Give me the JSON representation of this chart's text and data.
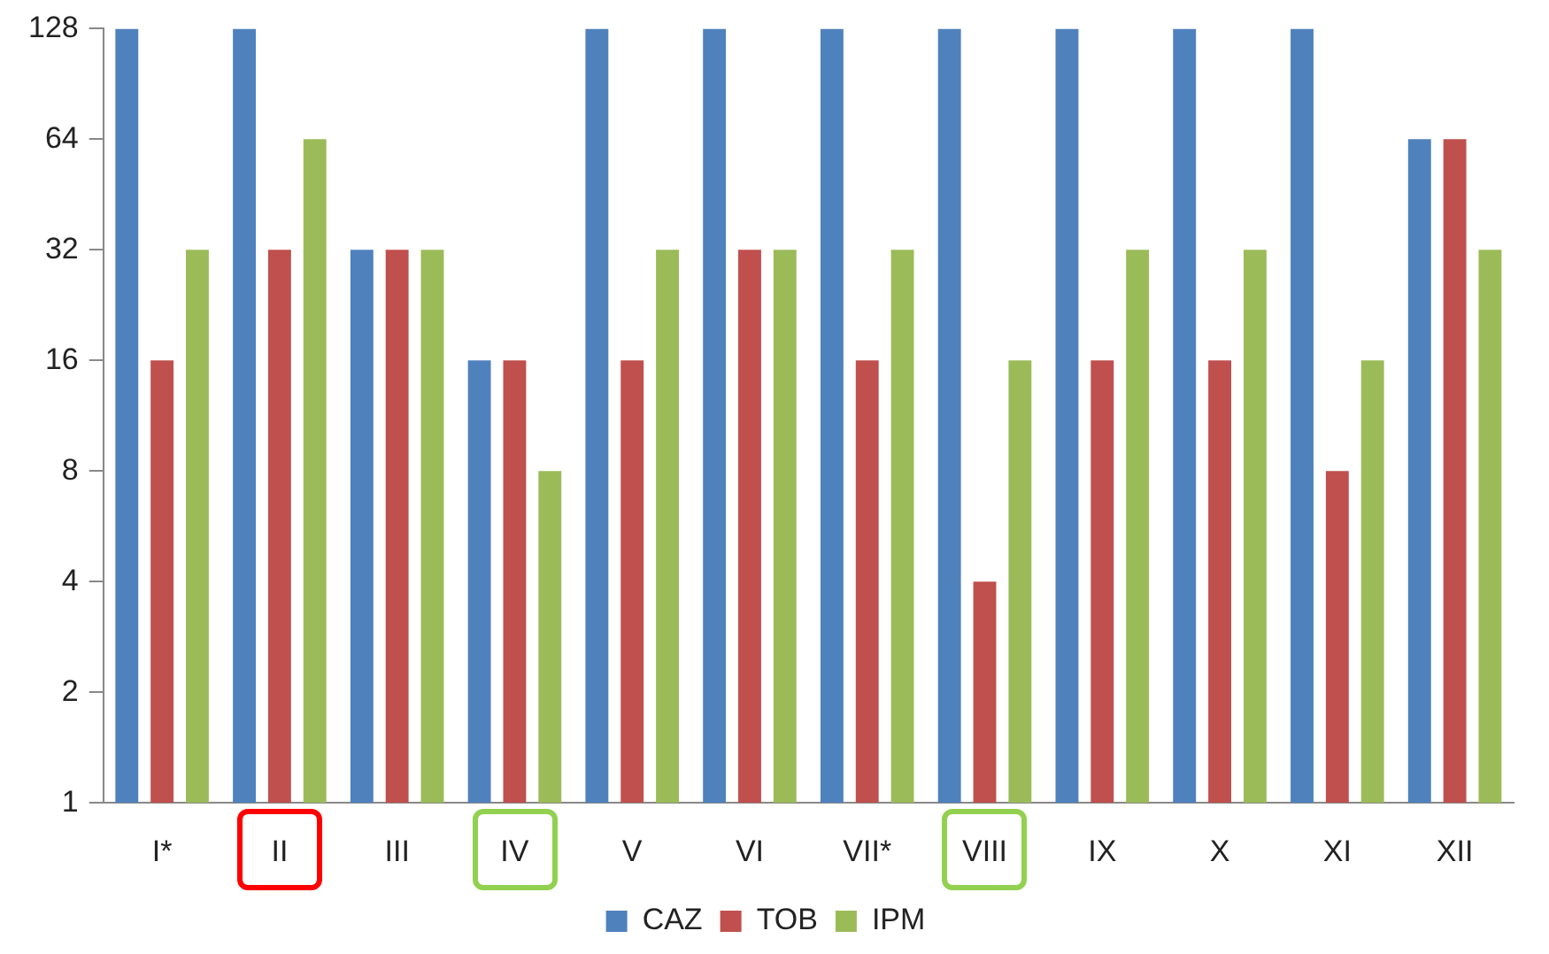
{
  "chart_data": {
    "type": "bar",
    "categories": [
      "I*",
      "II",
      "III",
      "IV",
      "V",
      "VI",
      "VII*",
      "VIII",
      "IX",
      "X",
      "XI",
      "XII"
    ],
    "series": [
      {
        "name": "CAZ",
        "color": "#4f81bd",
        "values": [
          128,
          128,
          32,
          16,
          128,
          128,
          128,
          128,
          128,
          128,
          128,
          64
        ]
      },
      {
        "name": "TOB",
        "color": "#c0504d",
        "values": [
          16,
          32,
          32,
          16,
          16,
          32,
          16,
          4,
          16,
          16,
          8,
          64
        ]
      },
      {
        "name": "IPM",
        "color": "#9bbb59",
        "values": [
          32,
          64,
          32,
          8,
          32,
          32,
          32,
          16,
          32,
          32,
          16,
          32
        ]
      }
    ],
    "log": true,
    "ylim": [
      1,
      128
    ],
    "yticks": [
      1,
      2,
      4,
      8,
      16,
      32,
      64,
      128
    ],
    "grid": false,
    "legend": "bottom"
  }
}
